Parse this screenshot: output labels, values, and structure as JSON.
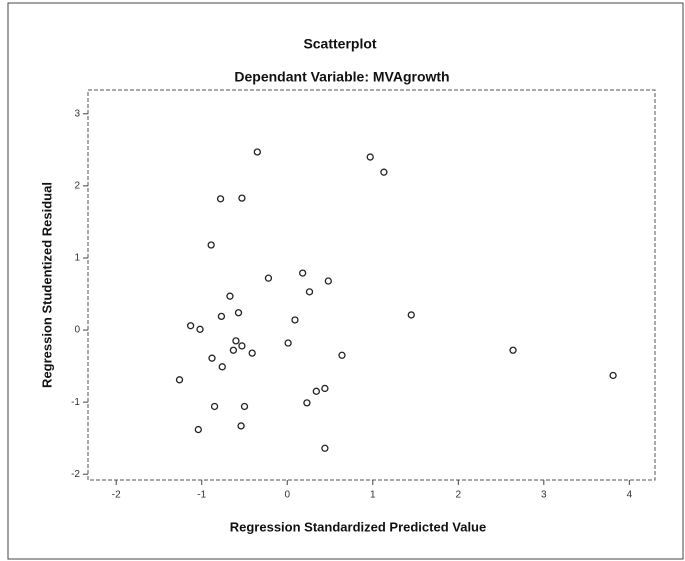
{
  "chart_data": {
    "type": "scatter",
    "title": "Scatterplot",
    "subtitle": "Dependant Variable: MVAgrowth",
    "x_label": "Regression Standardized Predicted Value",
    "y_label": "Regression Studentized Residual",
    "xlim": [
      -2.33,
      4.3
    ],
    "ylim": [
      -2.08,
      3.33
    ],
    "xticks": [
      -2,
      -1,
      0,
      1,
      2,
      3,
      4
    ],
    "yticks": [
      -2,
      -1,
      0,
      1,
      2,
      3
    ],
    "color": "#222222",
    "x": [
      -0.35,
      0.97,
      1.13,
      -0.78,
      -0.53,
      -0.89,
      -0.22,
      0.18,
      0.48,
      0.26,
      -0.67,
      -0.57,
      -0.77,
      1.45,
      0.09,
      -1.13,
      -1.02,
      -0.6,
      -0.53,
      -0.63,
      -0.41,
      0.01,
      0.64,
      2.64,
      -0.88,
      -0.76,
      -1.26,
      3.81,
      0.44,
      0.34,
      0.23,
      -0.85,
      -0.5,
      -1.04,
      -0.54,
      0.44
    ],
    "values": [
      2.47,
      2.4,
      2.19,
      1.82,
      1.83,
      1.18,
      0.72,
      0.79,
      0.68,
      0.53,
      0.47,
      0.24,
      0.19,
      0.21,
      0.14,
      0.06,
      0.01,
      -0.15,
      -0.22,
      -0.28,
      -0.32,
      -0.18,
      -0.35,
      -0.28,
      -0.39,
      -0.51,
      -0.69,
      -0.63,
      -0.81,
      -0.85,
      -1.01,
      -1.06,
      -1.06,
      -1.38,
      -1.33,
      -1.64
    ]
  }
}
